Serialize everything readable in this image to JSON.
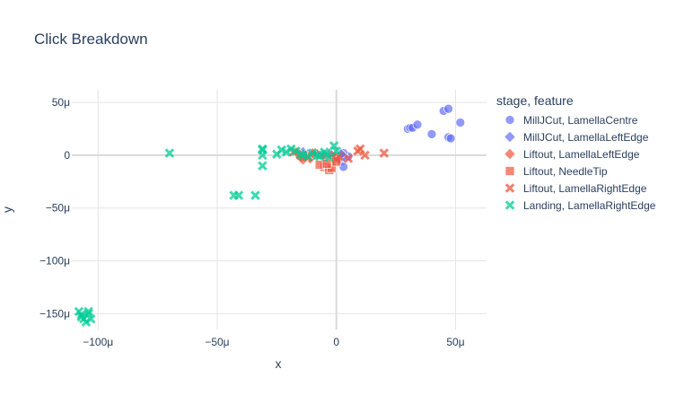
{
  "chart_data": {
    "type": "scatter",
    "title": "Click Breakdown",
    "xlabel": "x",
    "ylabel": "y",
    "xlim": [
      -111,
      63
    ],
    "ylim": [
      -165,
      62
    ],
    "x_ticks": [
      {
        "v": -100,
        "label": "−100μ"
      },
      {
        "v": -50,
        "label": "−50μ"
      },
      {
        "v": 0,
        "label": "0"
      },
      {
        "v": 50,
        "label": "50μ"
      }
    ],
    "y_ticks": [
      {
        "v": 50,
        "label": "50μ"
      },
      {
        "v": 0,
        "label": "0"
      },
      {
        "v": -50,
        "label": "−50μ"
      },
      {
        "v": -100,
        "label": "−100μ"
      },
      {
        "v": -150,
        "label": "−150μ"
      }
    ],
    "legend_title": "stage, feature",
    "legend_position": "right",
    "grid": true,
    "series": [
      {
        "name": "MillJCut, LamellaCentre",
        "symbol": "circle",
        "color": "#636efa",
        "points": [
          [
            30,
            25
          ],
          [
            31,
            26
          ],
          [
            32,
            26
          ],
          [
            34,
            29
          ],
          [
            40,
            20
          ],
          [
            45,
            42
          ],
          [
            47,
            44
          ],
          [
            47,
            17
          ],
          [
            48,
            16
          ],
          [
            52,
            31
          ],
          [
            2,
            -6
          ],
          [
            3,
            -11
          ],
          [
            4,
            -2
          ],
          [
            5,
            -1
          ],
          [
            3,
            2
          ],
          [
            -1,
            0
          ]
        ]
      },
      {
        "name": "MillJCut, LamellaLeftEdge",
        "symbol": "diamond",
        "color": "#636efa",
        "points": [
          [
            -14,
            3
          ],
          [
            -12,
            1
          ],
          [
            -9,
            2
          ],
          [
            -6,
            0
          ],
          [
            -3,
            1
          ],
          [
            1,
            -3
          ],
          [
            3,
            -1
          ],
          [
            2,
            1
          ],
          [
            -1,
            -1
          ]
        ]
      },
      {
        "name": "Liftout, LamellaLeftEdge",
        "symbol": "diamond",
        "color": "#ef553b",
        "points": [
          [
            -16,
            2
          ],
          [
            -15,
            -2
          ],
          [
            -13,
            0
          ],
          [
            -11,
            -3
          ],
          [
            -8,
            1
          ],
          [
            -5,
            -1
          ],
          [
            -2,
            0
          ],
          [
            -14,
            -4
          ],
          [
            -10,
            2
          ]
        ]
      },
      {
        "name": "Liftout, NeedleTip",
        "symbol": "square",
        "color": "#ef553b",
        "points": [
          [
            -5,
            -11
          ],
          [
            -3,
            -14
          ],
          [
            -2,
            -12
          ],
          [
            -7,
            -9
          ],
          [
            -4,
            -8
          ],
          [
            0,
            -6
          ]
        ]
      },
      {
        "name": "Liftout, LamellaRightEdge",
        "symbol": "x",
        "color": "#ef553b",
        "points": [
          [
            -18,
            3
          ],
          [
            -15,
            0
          ],
          [
            -12,
            -2
          ],
          [
            0,
            -4
          ],
          [
            1,
            -1
          ],
          [
            5,
            -3
          ],
          [
            9,
            4
          ],
          [
            10,
            6
          ],
          [
            12,
            0
          ],
          [
            20,
            2
          ]
        ]
      },
      {
        "name": "Landing, LamellaRightEdge",
        "symbol": "x",
        "color": "#00cc96",
        "points": [
          [
            -70,
            2
          ],
          [
            -43,
            -38
          ],
          [
            -41,
            -38
          ],
          [
            -34,
            -38
          ],
          [
            -31,
            5
          ],
          [
            -31,
            0
          ],
          [
            -31,
            -10
          ],
          [
            -31,
            6
          ],
          [
            -25,
            1
          ],
          [
            -23,
            5
          ],
          [
            -21,
            3
          ],
          [
            -19,
            6
          ],
          [
            -17,
            4
          ],
          [
            -15,
            1
          ],
          [
            -14,
            0
          ],
          [
            -12,
            -1
          ],
          [
            -10,
            2
          ],
          [
            -8,
            0
          ],
          [
            -7,
            -1
          ],
          [
            -5,
            3
          ],
          [
            -4,
            1
          ],
          [
            -3,
            -2
          ],
          [
            -1,
            9
          ],
          [
            0,
            4
          ],
          [
            -108,
            -148
          ],
          [
            -107,
            -153
          ],
          [
            -105,
            -158
          ],
          [
            -104,
            -150
          ],
          [
            -106,
            -155
          ],
          [
            -104,
            -148
          ],
          [
            -103,
            -155
          ],
          [
            -107,
            -151
          ]
        ]
      }
    ]
  }
}
